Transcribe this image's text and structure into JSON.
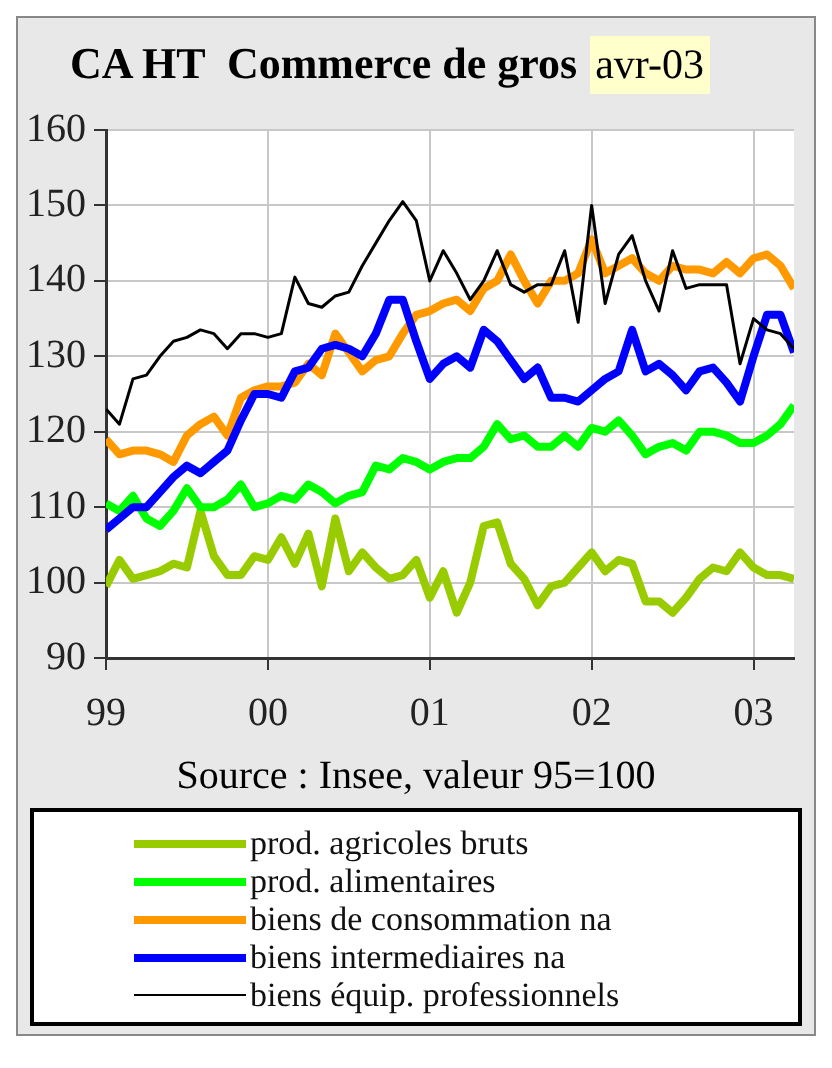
{
  "chart_data": {
    "type": "line",
    "title": "CA HT  Commerce de gros",
    "subtitle": "avr-03",
    "annotations": [
      "Source : Insee, valeur 95=100"
    ],
    "x": [
      "1999-01",
      "1999-02",
      "1999-03",
      "1999-04",
      "1999-05",
      "1999-06",
      "1999-07",
      "1999-08",
      "1999-09",
      "1999-10",
      "1999-11",
      "1999-12",
      "2000-01",
      "2000-02",
      "2000-03",
      "2000-04",
      "2000-05",
      "2000-06",
      "2000-07",
      "2000-08",
      "2000-09",
      "2000-10",
      "2000-11",
      "2000-12",
      "2001-01",
      "2001-02",
      "2001-03",
      "2001-04",
      "2001-05",
      "2001-06",
      "2001-07",
      "2001-08",
      "2001-09",
      "2001-10",
      "2001-11",
      "2001-12",
      "2002-01",
      "2002-02",
      "2002-03",
      "2002-04",
      "2002-05",
      "2002-06",
      "2002-07",
      "2002-08",
      "2002-09",
      "2002-10",
      "2002-11",
      "2002-12",
      "2003-01",
      "2003-02",
      "2003-03",
      "2003-04"
    ],
    "series": [
      {
        "name": "prod. agricoles bruts",
        "color": "#99cc00",
        "values": [
          99.5,
          103,
          100.5,
          101,
          101.5,
          102.5,
          102,
          109.5,
          103.5,
          101,
          101,
          103.5,
          103,
          106,
          102.5,
          106.5,
          99.5,
          108.5,
          101.5,
          104,
          102,
          100.5,
          101,
          103,
          98,
          101.5,
          96,
          100,
          107.5,
          108,
          102.5,
          100.5,
          97,
          99.5,
          100,
          102,
          104,
          101.5,
          103,
          102.5,
          97.5,
          97.5,
          96,
          98,
          100.5,
          102,
          101.5,
          104,
          102,
          101,
          101,
          100.5
        ]
      },
      {
        "name": "prod. alimentaires",
        "color": "#00ff00",
        "values": [
          110.5,
          109.5,
          111.5,
          108.5,
          107.5,
          109.5,
          112.5,
          110,
          110,
          111,
          113,
          110,
          110.5,
          111.5,
          111,
          113,
          112,
          110.5,
          111.5,
          112,
          115.5,
          115,
          116.5,
          116,
          115,
          116,
          116.5,
          116.5,
          118,
          121,
          119,
          119.5,
          118,
          118,
          119.5,
          118,
          120.5,
          120,
          121.5,
          119.5,
          117,
          118,
          118.5,
          117.5,
          120,
          120,
          119.5,
          118.5,
          118.5,
          119.5,
          121,
          123.5
        ]
      },
      {
        "name": "biens de consommation na",
        "color": "#ff9900",
        "values": [
          119,
          117,
          117.5,
          117.5,
          117,
          116,
          119.5,
          121,
          122,
          119.5,
          124.5,
          125.5,
          126,
          126,
          126.5,
          129,
          127.5,
          133,
          130.5,
          128,
          129.5,
          130,
          133,
          135.5,
          136,
          137,
          137.5,
          136,
          139,
          140,
          143.5,
          140,
          137,
          140,
          140,
          141,
          145.5,
          141,
          142,
          143,
          141,
          140,
          142,
          141.5,
          141.5,
          141,
          142.5,
          141,
          143,
          143.5,
          142,
          139
        ]
      },
      {
        "name": "biens intermediaires na",
        "color": "#0000ff",
        "values": [
          107,
          108.5,
          110,
          110,
          112,
          114,
          115.5,
          114.5,
          116,
          117.5,
          121.5,
          125,
          125,
          124.5,
          128,
          128.5,
          131,
          131.5,
          131,
          130,
          133,
          137.5,
          137.5,
          132,
          127,
          129,
          130,
          128.5,
          133.5,
          132,
          129.5,
          127,
          128.5,
          124.5,
          124.5,
          124,
          125.5,
          127,
          128,
          133.5,
          128,
          129,
          127.5,
          125.5,
          128,
          128.5,
          126.5,
          124,
          130,
          135.5,
          135.5,
          130.5
        ]
      },
      {
        "name": "biens équip. professionnels",
        "color": "#000000",
        "values": [
          123,
          121,
          127,
          127.5,
          130,
          132,
          132.5,
          133.5,
          133,
          131,
          133,
          133,
          132.5,
          133,
          140.5,
          137,
          136.5,
          138,
          138.5,
          142,
          145,
          148,
          150.5,
          148,
          140,
          144,
          141,
          137.5,
          140,
          144,
          139.5,
          138.5,
          139.5,
          139.5,
          144,
          134.5,
          150,
          137,
          143.5,
          146,
          140,
          136,
          144,
          139,
          139.5,
          139.5,
          139.5,
          129,
          135,
          133.5,
          133,
          131
        ]
      }
    ],
    "xlim": [
      "1999-01",
      "2003-04"
    ],
    "xticks": [
      {
        "value": "1999-01",
        "label": "99"
      },
      {
        "value": "2000-01",
        "label": "00"
      },
      {
        "value": "2001-01",
        "label": "01"
      },
      {
        "value": "2002-01",
        "label": "02"
      },
      {
        "value": "2003-01",
        "label": "03"
      }
    ],
    "ylim": [
      90,
      160
    ],
    "yticks": [
      90,
      100,
      110,
      120,
      130,
      140,
      150,
      160
    ],
    "grid": true,
    "legend": "bottom",
    "marker": "none",
    "line_style": "solid"
  }
}
